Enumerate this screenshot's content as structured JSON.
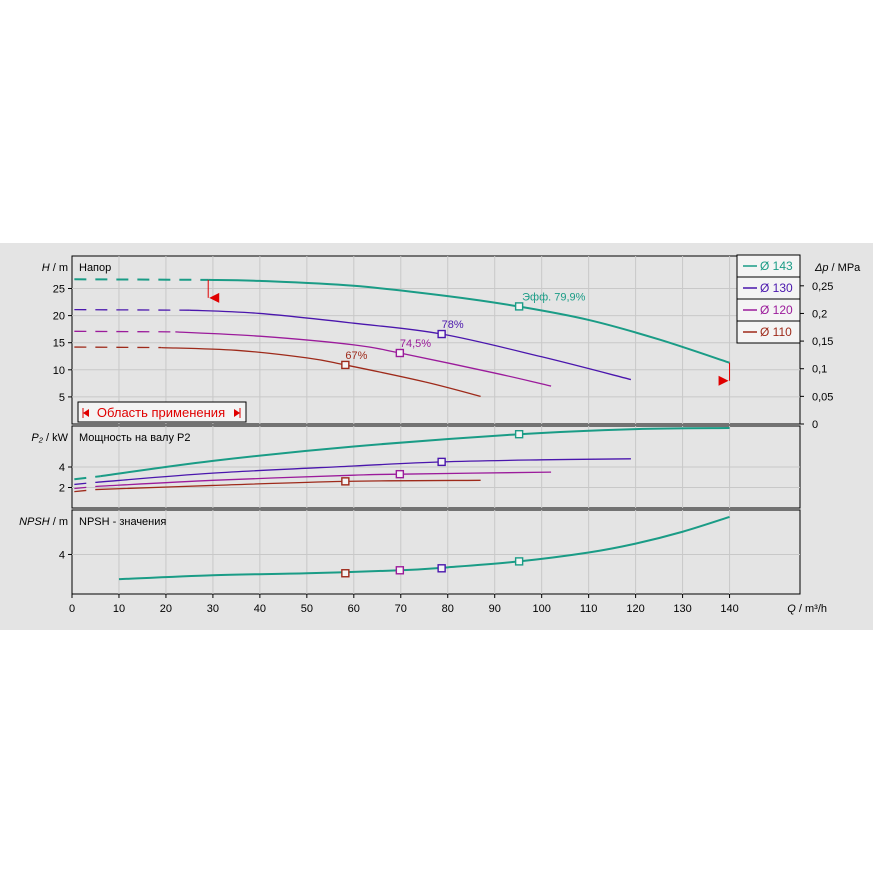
{
  "chart_data": {
    "type": "line",
    "colors": {
      "d143": "#1a9c86",
      "d130": "#4a16ad",
      "d120": "#9b1b9b",
      "d110": "#9e2a1a",
      "range": "#e00000"
    },
    "legend": [
      {
        "key": "d143",
        "label": "Ø 143"
      },
      {
        "key": "d130",
        "label": "Ø 130"
      },
      {
        "key": "d120",
        "label": "Ø 120"
      },
      {
        "key": "d110",
        "label": "Ø 110"
      }
    ],
    "x_axis": {
      "label": "Q / m³/h",
      "label_sym": "Q",
      "label_unit": " / m³/h",
      "range": [
        0,
        155
      ],
      "ticks": [
        "0",
        "10",
        "20",
        "30",
        "40",
        "50",
        "60",
        "70",
        "80",
        "90",
        "100",
        "110",
        "120",
        "130",
        "140"
      ]
    },
    "head": {
      "title": "Напор",
      "ylabel": "H / m",
      "ylabel_sym": "H",
      "ylabel_unit": " / m",
      "range": [
        0,
        31
      ],
      "ticks": [
        "5",
        "10",
        "15",
        "20",
        "25"
      ],
      "right_label": "Δp / MPa",
      "right_label_sym": "Δp",
      "right_label_unit": " / MPa",
      "right_ticks": [
        "0",
        "0,05",
        "0,1",
        "0,15",
        "0,2",
        "0,25"
      ],
      "series": [
        {
          "key": "d143",
          "dashed": [
            [
              0.5,
              26.7
            ],
            [
              29,
              26.6
            ]
          ],
          "points": [
            [
              29,
              26.6
            ],
            [
              40,
              26.4
            ],
            [
              60,
              25.5
            ],
            [
              80,
              23.6
            ],
            [
              95,
              21.7
            ],
            [
              110,
              19.2
            ],
            [
              125,
              15.6
            ],
            [
              140,
              11.3
            ]
          ],
          "marker": [
            95.2,
            21.7
          ],
          "annotation": "Эфф.  79,9%"
        },
        {
          "key": "d130",
          "dashed": [
            [
              0.5,
              21.1
            ],
            [
              25,
              21.0
            ]
          ],
          "points": [
            [
              25,
              21.0
            ],
            [
              40,
              20.4
            ],
            [
              60,
              18.6
            ],
            [
              78.7,
              16.6
            ],
            [
              100,
              12.4
            ],
            [
              119,
              8.2
            ]
          ],
          "marker": [
            78.7,
            16.6
          ],
          "annotation": "78%"
        },
        {
          "key": "d120",
          "dashed": [
            [
              0.5,
              17.1
            ],
            [
              22,
              17.0
            ]
          ],
          "points": [
            [
              22,
              17.0
            ],
            [
              40,
              16.2
            ],
            [
              60,
              14.6
            ],
            [
              69.8,
              13.1
            ],
            [
              90,
              9.4
            ],
            [
              102,
              7.0
            ]
          ],
          "marker": [
            69.8,
            13.1
          ],
          "annotation": "74,5%"
        },
        {
          "key": "d110",
          "dashed": [
            [
              0.5,
              14.2
            ],
            [
              19,
              14.1
            ]
          ],
          "points": [
            [
              19,
              14.1
            ],
            [
              35,
              13.6
            ],
            [
              50,
              12.2
            ],
            [
              58.2,
              10.9
            ],
            [
              75,
              7.8
            ],
            [
              87,
              5.1
            ]
          ],
          "marker": [
            58.2,
            10.9
          ],
          "annotation": "67%"
        }
      ],
      "range_box": {
        "label": "Область применения"
      },
      "range_limits": [
        [
          29,
          26.6
        ],
        [
          140,
          11.3
        ]
      ]
    },
    "power": {
      "title": "Мощность на валу P2",
      "ylabel": "P₂ / kW",
      "ylabel_sym": "P₂",
      "ylabel_unit": " / kW",
      "range": [
        0,
        8
      ],
      "ticks": [
        "2",
        "4"
      ],
      "series": [
        {
          "key": "d143",
          "dashed": [
            [
              0.5,
              2.8
            ],
            [
              6,
              3.1
            ]
          ],
          "points": [
            [
              6,
              3.1
            ],
            [
              30,
              4.6
            ],
            [
              60,
              6.0
            ],
            [
              95.2,
              7.2
            ],
            [
              120,
              7.7
            ],
            [
              140,
              7.8
            ]
          ],
          "marker": [
            95.2,
            7.2
          ]
        },
        {
          "key": "d130",
          "dashed": [
            [
              0.5,
              2.3
            ],
            [
              5,
              2.5
            ]
          ],
          "points": [
            [
              5,
              2.5
            ],
            [
              30,
              3.4
            ],
            [
              60,
              4.1
            ],
            [
              78.7,
              4.5
            ],
            [
              100,
              4.7
            ],
            [
              119,
              4.8
            ]
          ],
          "marker": [
            78.7,
            4.5
          ]
        },
        {
          "key": "d120",
          "dashed": [
            [
              0.5,
              1.9
            ],
            [
              5,
              2.1
            ]
          ],
          "points": [
            [
              5,
              2.1
            ],
            [
              30,
              2.7
            ],
            [
              60,
              3.2
            ],
            [
              69.8,
              3.3
            ],
            [
              102,
              3.5
            ]
          ],
          "marker": [
            69.8,
            3.3
          ]
        },
        {
          "key": "d110",
          "dashed": [
            [
              0.5,
              1.6
            ],
            [
              5,
              1.8
            ]
          ],
          "points": [
            [
              5,
              1.8
            ],
            [
              30,
              2.2
            ],
            [
              58.2,
              2.6
            ],
            [
              87,
              2.7
            ]
          ],
          "marker": [
            58.2,
            2.6
          ]
        }
      ]
    },
    "npsh": {
      "title": "NPSH - значения",
      "ylabel": "NPSH / m",
      "ylabel_sym": "NPSH",
      "ylabel_unit": " / m",
      "range": [
        0,
        8.5
      ],
      "ticks": [
        "4"
      ],
      "series": [
        {
          "key": "d143",
          "points": [
            [
              10,
              1.5
            ],
            [
              30,
              1.9
            ],
            [
              50,
              2.1
            ],
            [
              70,
              2.4
            ],
            [
              80,
              2.7
            ],
            [
              95.2,
              3.3
            ],
            [
              110,
              4.2
            ],
            [
              120,
              5.1
            ],
            [
              130,
              6.3
            ],
            [
              140,
              7.8
            ]
          ],
          "markers": [
            {
              "key": "d110",
              "at": [
                58.2,
                2.1
              ]
            },
            {
              "key": "d120",
              "at": [
                69.8,
                2.4
              ]
            },
            {
              "key": "d130",
              "at": [
                78.7,
                2.6
              ]
            },
            {
              "key": "d143",
              "at": [
                95.2,
                3.3
              ]
            }
          ]
        }
      ]
    }
  }
}
